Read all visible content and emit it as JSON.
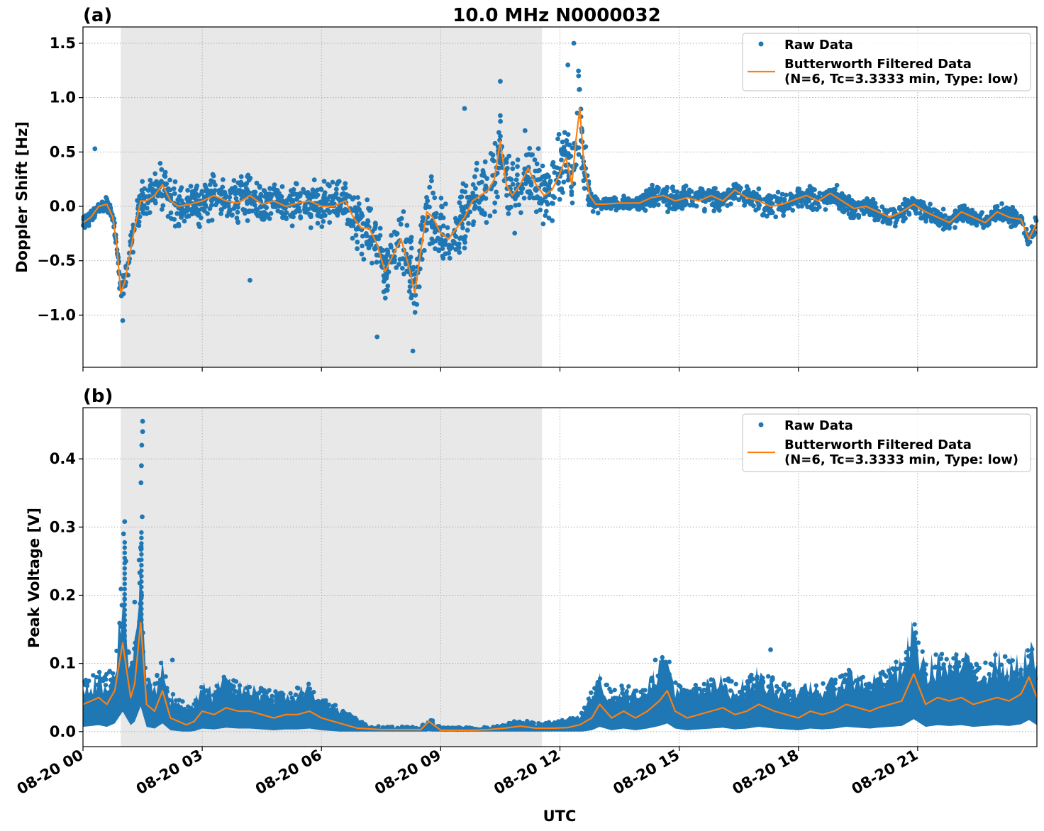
{
  "figure": {
    "title": "10.0 MHz N0000032",
    "xlabel": "UTC"
  },
  "colors": {
    "raw": "#1f77b4",
    "filtered": "#ff7f0e",
    "shade": "#e8e8e8",
    "grid": "#b0b0b0"
  },
  "chart_data": [
    {
      "type": "scatter",
      "panel_label": "(a)",
      "title": "10.0 MHz N0000032",
      "xlabel": "",
      "ylabel": "Doppler Shift [Hz]",
      "xlim_hours": [
        0,
        24
      ],
      "ylim": [
        -1.48,
        1.65
      ],
      "yticks": [
        1.5,
        1.0,
        0.5,
        0.0,
        -0.5,
        -1.0
      ],
      "ytick_labels": [
        "1.5",
        "1.0",
        "0.5",
        "0.0",
        "−0.5",
        "−1.0"
      ],
      "x_tick_hours": [
        0,
        3,
        6,
        9,
        12,
        15,
        18,
        21
      ],
      "grid": true,
      "legend_placement": "top-right",
      "shaded_interval_hours": [
        0.95,
        11.55
      ],
      "legend": {
        "raw": "Raw Data",
        "filtered_line1": "Butterworth Filtered Data",
        "filtered_line2": "(N=6, Tc=3.3333 min, Type: low)"
      },
      "series": [
        {
          "name": "Butterworth Filtered Data",
          "kind": "line",
          "x_hours": [
            0,
            0.2,
            0.4,
            0.6,
            0.75,
            0.85,
            0.95,
            1.05,
            1.15,
            1.3,
            1.45,
            1.6,
            1.8,
            2.0,
            2.2,
            2.4,
            2.7,
            3.0,
            3.3,
            3.6,
            3.9,
            4.2,
            4.5,
            4.8,
            5.1,
            5.4,
            5.7,
            6.0,
            6.3,
            6.6,
            6.8,
            7.0,
            7.2,
            7.4,
            7.6,
            7.8,
            8.0,
            8.2,
            8.35,
            8.5,
            8.65,
            8.8,
            9.0,
            9.2,
            9.4,
            9.6,
            9.8,
            10.0,
            10.2,
            10.35,
            10.5,
            10.65,
            10.8,
            11.0,
            11.2,
            11.4,
            11.6,
            11.8,
            12.0,
            12.15,
            12.3,
            12.4,
            12.5,
            12.6,
            12.75,
            12.9,
            13.1,
            13.5,
            14.0,
            14.3,
            14.6,
            14.9,
            15.2,
            15.5,
            15.8,
            16.1,
            16.4,
            16.7,
            17.0,
            17.3,
            17.6,
            17.9,
            18.2,
            18.5,
            18.8,
            19.1,
            19.4,
            19.7,
            20.0,
            20.3,
            20.6,
            20.9,
            21.2,
            21.5,
            21.8,
            22.1,
            22.4,
            22.7,
            23.0,
            23.3,
            23.6,
            23.8,
            24.0
          ],
          "y": [
            -0.15,
            -0.1,
            0.0,
            0.02,
            -0.1,
            -0.35,
            -0.8,
            -0.7,
            -0.5,
            -0.2,
            0.05,
            0.05,
            0.1,
            0.2,
            0.05,
            0.0,
            0.02,
            0.05,
            0.1,
            0.05,
            0.03,
            0.1,
            0.02,
            0.05,
            0.0,
            0.03,
            0.05,
            0.0,
            0.0,
            0.05,
            -0.1,
            -0.2,
            -0.2,
            -0.35,
            -0.6,
            -0.45,
            -0.3,
            -0.55,
            -0.8,
            -0.4,
            -0.05,
            -0.1,
            -0.25,
            -0.3,
            -0.2,
            -0.1,
            0.05,
            0.1,
            0.15,
            0.25,
            0.6,
            0.2,
            0.1,
            0.2,
            0.35,
            0.2,
            0.1,
            0.15,
            0.3,
            0.45,
            0.2,
            0.6,
            0.9,
            0.4,
            0.1,
            0.02,
            0.02,
            0.03,
            0.03,
            0.08,
            0.1,
            0.05,
            0.08,
            0.05,
            0.1,
            0.05,
            0.15,
            0.08,
            0.05,
            0.0,
            0.02,
            0.06,
            0.1,
            0.05,
            0.12,
            0.05,
            -0.02,
            0.0,
            -0.05,
            -0.1,
            -0.05,
            0.02,
            -0.05,
            -0.1,
            -0.15,
            -0.05,
            -0.1,
            -0.15,
            -0.05,
            -0.1,
            -0.12,
            -0.3,
            -0.15
          ]
        },
        {
          "name": "Raw Data",
          "kind": "scatter",
          "spread_envelope": [
            0.1,
            0.1,
            0.08,
            0.08,
            0.1,
            0.12,
            0.2,
            0.2,
            0.25,
            0.35,
            0.3,
            0.25,
            0.3,
            0.3,
            0.3,
            0.25,
            0.25,
            0.3,
            0.3,
            0.25,
            0.3,
            0.3,
            0.3,
            0.25,
            0.25,
            0.25,
            0.3,
            0.3,
            0.3,
            0.25,
            0.3,
            0.4,
            0.4,
            0.35,
            0.35,
            0.4,
            0.45,
            0.45,
            0.4,
            0.45,
            0.45,
            0.45,
            0.5,
            0.45,
            0.45,
            0.45,
            0.45,
            0.45,
            0.45,
            0.45,
            0.5,
            0.45,
            0.45,
            0.5,
            0.45,
            0.45,
            0.45,
            0.45,
            0.45,
            0.5,
            0.45,
            0.5,
            0.55,
            0.35,
            0.15,
            0.1,
            0.08,
            0.08,
            0.1,
            0.15,
            0.15,
            0.15,
            0.15,
            0.15,
            0.15,
            0.15,
            0.15,
            0.15,
            0.15,
            0.15,
            0.15,
            0.15,
            0.15,
            0.15,
            0.15,
            0.15,
            0.15,
            0.12,
            0.12,
            0.12,
            0.12,
            0.12,
            0.12,
            0.12,
            0.12,
            0.12,
            0.12,
            0.12,
            0.12,
            0.12,
            0.12,
            0.12,
            0.12
          ],
          "outliers": [
            {
              "x_hours": 0.3,
              "y": 0.53
            },
            {
              "x_hours": 1.0,
              "y": -1.05
            },
            {
              "x_hours": 7.4,
              "y": -1.2
            },
            {
              "x_hours": 8.3,
              "y": -1.33
            },
            {
              "x_hours": 10.5,
              "y": 1.15
            },
            {
              "x_hours": 12.35,
              "y": 1.5
            },
            {
              "x_hours": 12.2,
              "y": 1.3
            },
            {
              "x_hours": 9.6,
              "y": 0.9
            },
            {
              "x_hours": 4.2,
              "y": -0.68
            }
          ]
        }
      ]
    },
    {
      "type": "scatter",
      "panel_label": "(b)",
      "title": "",
      "xlabel": "UTC",
      "ylabel": "Peak Voltage [V]",
      "xlim_hours": [
        0,
        24
      ],
      "ylim": [
        -0.022,
        0.475
      ],
      "yticks": [
        0.0,
        0.1,
        0.2,
        0.3,
        0.4
      ],
      "ytick_labels": [
        "0.0",
        "0.1",
        "0.2",
        "0.3",
        "0.4"
      ],
      "x_tick_hours": [
        0,
        3,
        6,
        9,
        12,
        15,
        18,
        21
      ],
      "x_tick_labels": [
        "08-20 00",
        "08-20 03",
        "08-20 06",
        "08-20 09",
        "08-20 12",
        "08-20 15",
        "08-20 18",
        "08-20 21"
      ],
      "grid": true,
      "legend_placement": "top-right",
      "shaded_interval_hours": [
        0.95,
        11.55
      ],
      "legend": {
        "raw": "Raw Data",
        "filtered_line1": "Butterworth Filtered Data",
        "filtered_line2": "(N=6, Tc=3.3333 min, Type: low)"
      },
      "series": [
        {
          "name": "Butterworth Filtered Data",
          "kind": "line",
          "x_hours": [
            0,
            0.2,
            0.4,
            0.6,
            0.8,
            1.0,
            1.1,
            1.2,
            1.3,
            1.45,
            1.6,
            1.8,
            2.0,
            2.2,
            2.4,
            2.6,
            2.8,
            3.0,
            3.3,
            3.6,
            3.9,
            4.2,
            4.5,
            4.8,
            5.1,
            5.4,
            5.7,
            6.0,
            6.3,
            6.6,
            6.9,
            7.2,
            7.5,
            8.0,
            8.5,
            8.7,
            9.0,
            9.4,
            9.8,
            10.2,
            10.6,
            11.0,
            11.4,
            11.8,
            12.2,
            12.5,
            12.8,
            13.0,
            13.3,
            13.6,
            13.9,
            14.2,
            14.5,
            14.7,
            14.9,
            15.2,
            15.5,
            15.8,
            16.1,
            16.4,
            16.7,
            17.0,
            17.2,
            17.4,
            17.7,
            18.0,
            18.3,
            18.6,
            18.9,
            19.2,
            19.5,
            19.8,
            20.0,
            20.3,
            20.6,
            20.9,
            21.2,
            21.5,
            21.8,
            22.1,
            22.4,
            22.7,
            23.0,
            23.3,
            23.6,
            23.8,
            24.0
          ],
          "y": [
            0.04,
            0.045,
            0.05,
            0.04,
            0.06,
            0.13,
            0.09,
            0.05,
            0.07,
            0.16,
            0.04,
            0.03,
            0.06,
            0.02,
            0.015,
            0.01,
            0.015,
            0.03,
            0.025,
            0.035,
            0.03,
            0.03,
            0.025,
            0.02,
            0.025,
            0.025,
            0.03,
            0.02,
            0.015,
            0.01,
            0.005,
            0.004,
            0.003,
            0.003,
            0.003,
            0.015,
            0.002,
            0.002,
            0.002,
            0.003,
            0.005,
            0.008,
            0.005,
            0.005,
            0.006,
            0.01,
            0.02,
            0.04,
            0.02,
            0.03,
            0.02,
            0.03,
            0.045,
            0.06,
            0.03,
            0.02,
            0.025,
            0.03,
            0.035,
            0.025,
            0.03,
            0.04,
            0.035,
            0.03,
            0.025,
            0.02,
            0.03,
            0.025,
            0.03,
            0.04,
            0.035,
            0.03,
            0.035,
            0.04,
            0.045,
            0.085,
            0.04,
            0.05,
            0.045,
            0.05,
            0.04,
            0.045,
            0.05,
            0.045,
            0.055,
            0.08,
            0.05
          ],
          "y_upper": [
            0.07,
            0.07,
            0.075,
            0.07,
            0.09,
            0.2,
            0.14,
            0.08,
            0.11,
            0.25,
            0.07,
            0.06,
            0.09,
            0.05,
            0.04,
            0.035,
            0.04,
            0.06,
            0.055,
            0.07,
            0.06,
            0.06,
            0.055,
            0.05,
            0.05,
            0.055,
            0.06,
            0.045,
            0.035,
            0.025,
            0.015,
            0.008,
            0.006,
            0.006,
            0.006,
            0.02,
            0.005,
            0.005,
            0.005,
            0.006,
            0.01,
            0.015,
            0.01,
            0.012,
            0.015,
            0.025,
            0.05,
            0.07,
            0.05,
            0.06,
            0.05,
            0.065,
            0.09,
            0.1,
            0.065,
            0.05,
            0.06,
            0.065,
            0.07,
            0.06,
            0.065,
            0.08,
            0.07,
            0.065,
            0.06,
            0.05,
            0.065,
            0.06,
            0.065,
            0.08,
            0.075,
            0.07,
            0.075,
            0.08,
            0.09,
            0.14,
            0.085,
            0.1,
            0.09,
            0.1,
            0.085,
            0.09,
            0.1,
            0.09,
            0.1,
            0.11,
            0.1
          ]
        },
        {
          "name": "Raw Data",
          "kind": "scatter",
          "outliers": [
            {
              "x_hours": 1.5,
              "y": 0.455
            },
            {
              "x_hours": 1.5,
              "y": 0.44
            },
            {
              "x_hours": 1.48,
              "y": 0.42
            },
            {
              "x_hours": 1.47,
              "y": 0.39
            },
            {
              "x_hours": 1.46,
              "y": 0.365
            },
            {
              "x_hours": 1.49,
              "y": 0.315
            },
            {
              "x_hours": 1.45,
              "y": 0.27
            },
            {
              "x_hours": 1.05,
              "y": 0.308
            },
            {
              "x_hours": 1.02,
              "y": 0.29
            },
            {
              "x_hours": 1.08,
              "y": 0.25
            },
            {
              "x_hours": 1.3,
              "y": 0.19
            },
            {
              "x_hours": 2.25,
              "y": 0.105
            },
            {
              "x_hours": 14.4,
              "y": 0.105
            },
            {
              "x_hours": 20.95,
              "y": 0.145
            },
            {
              "x_hours": 17.3,
              "y": 0.12
            },
            {
              "x_hours": 23.2,
              "y": 0.11
            }
          ]
        }
      ]
    }
  ]
}
